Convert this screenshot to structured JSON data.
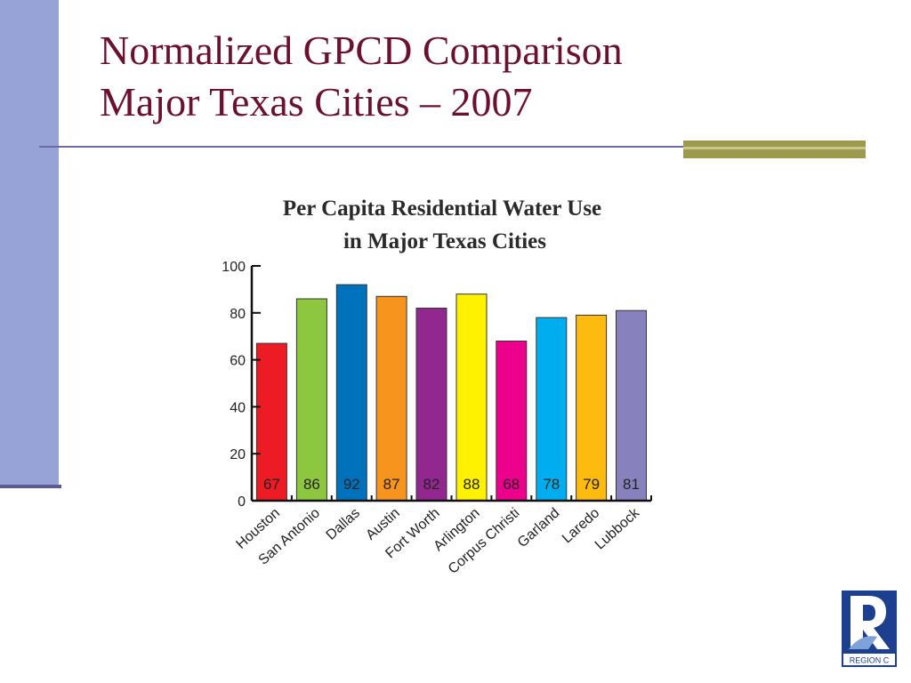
{
  "slide": {
    "title_line1": "Normalized GPCD Comparison",
    "title_line2": "Major Texas Cities – 2007"
  },
  "colors": {
    "left_band": "#97a3d6",
    "title": "#6b1030",
    "accent_bar": "#9c9a4e",
    "logo_blue": "#1d3f8f"
  },
  "logo": {
    "text": "REGION C",
    "icon": "region-c-logo-icon"
  },
  "chart_data": {
    "type": "bar",
    "title_line1": "Per Capita Residential Water Use",
    "title_line2": "in Major Texas Cities",
    "categories": [
      "Houston",
      "San Antonio",
      "Dallas",
      "Austin",
      "Fort Worth",
      "Arlington",
      "Corpus Christi",
      "Garland",
      "Laredo",
      "Lubbock"
    ],
    "values": [
      67,
      86,
      92,
      87,
      82,
      88,
      68,
      78,
      79,
      81
    ],
    "value_labels": [
      "67",
      "86",
      "92",
      "87",
      "82",
      "88",
      "68",
      "78",
      "79",
      "81"
    ],
    "colors": [
      "#ed1c24",
      "#8dc63f",
      "#0072bc",
      "#f7941d",
      "#92278f",
      "#fff200",
      "#ec008c",
      "#00aeef",
      "#fdbb10",
      "#8781bd"
    ],
    "yticks": [
      0,
      20,
      40,
      60,
      80,
      100
    ],
    "ytick_labels": [
      "0",
      "20",
      "40",
      "60",
      "80",
      "100"
    ],
    "ylim": [
      0,
      100
    ],
    "xlabel": "",
    "ylabel": "",
    "grid": false,
    "legend": "none"
  }
}
